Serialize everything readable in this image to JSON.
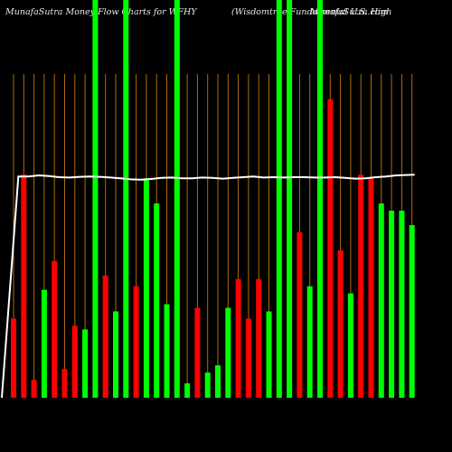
{
  "header": {
    "left": "MunafaSutra  Money Flow  Charts for WFHY",
    "middle": "(Wisdomtree   Fundamental U.S. High",
    "right": "MunafaSutra.com"
  },
  "chart_data": {
    "type": "bar",
    "title": "MunafaSutra  Money Flow  Charts for WFHY",
    "xlabel": "",
    "ylabel": "",
    "ylim": [
      0,
      100
    ],
    "grid": true,
    "legend": "none",
    "colors": {
      "up": "#00ff00",
      "down": "#ff0000",
      "line": "#ffffff",
      "grid": "#b06a10"
    },
    "values": [
      22,
      62,
      5,
      30,
      38,
      8,
      20,
      19,
      100,
      34,
      24,
      100,
      31,
      61,
      54,
      26,
      100,
      4,
      25,
      7,
      9,
      25,
      33,
      22,
      33,
      24,
      100,
      100,
      46,
      31,
      100,
      83,
      41,
      29,
      62,
      61,
      54,
      52,
      52,
      48
    ],
    "directions": [
      "down",
      "down",
      "down",
      "up",
      "down",
      "down",
      "down",
      "up",
      "up",
      "down",
      "up",
      "up",
      "down",
      "up",
      "up",
      "up",
      "up",
      "up",
      "down",
      "up",
      "up",
      "up",
      "down",
      "down",
      "down",
      "up",
      "up",
      "up",
      "down",
      "up",
      "up",
      "down",
      "down",
      "up",
      "down",
      "down",
      "up",
      "up",
      "up",
      "up"
    ],
    "line": [
      0,
      61.5,
      61.5,
      61.8,
      61.6,
      61.3,
      61.2,
      61.4,
      61.5,
      61.4,
      61.2,
      61.0,
      60.7,
      60.6,
      60.8,
      61.1,
      61.2,
      61.0,
      61.0,
      61.2,
      61.1,
      60.9,
      61.1,
      61.3,
      61.5,
      61.2,
      61.3,
      61.2,
      61.3,
      61.3,
      61.2,
      61.2,
      61.3,
      61.1,
      60.9,
      61.0,
      61.3,
      61.5,
      61.8,
      62.0
    ]
  }
}
